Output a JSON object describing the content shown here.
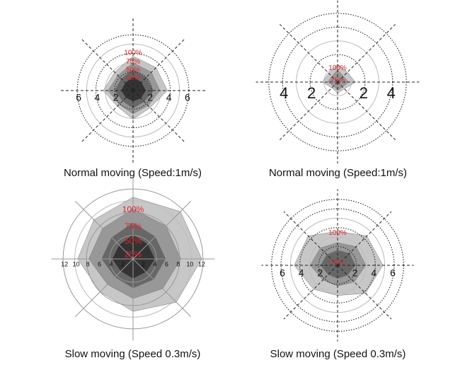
{
  "colors": {
    "background": "#ffffff",
    "grid_line": "#222222",
    "grid_light": "#bbbbbb",
    "percent_label": "#e0262a",
    "fill_outer": "#bdbdbd",
    "fill_mid": "#8f8f8f",
    "fill_inner": "#5e5e5e",
    "fill_core": "#2a2a2a"
  },
  "chart_data": [
    {
      "type": "radar",
      "caption": "Normal moving (Speed:1m/s)",
      "spokes": 8,
      "rlim": [
        0,
        7
      ],
      "tick_values": [
        2,
        4,
        6
      ],
      "x_tick_labels": [
        "6",
        "4",
        "2",
        "2",
        "4",
        "6"
      ],
      "rings": [
        2,
        4,
        6
      ],
      "light_rings": [
        1,
        3,
        5
      ],
      "ring_style": "dotted",
      "percent_labels": [
        {
          "text": "100%",
          "r": 4.1
        },
        {
          "text": "75%",
          "r": 3.15
        },
        {
          "text": "50%",
          "r": 2.3
        },
        {
          "text": "25%",
          "r": 1.4
        }
      ],
      "series": [
        {
          "level": "100%",
          "radii": [
            3.7,
            3.5,
            3.7,
            2.6,
            3.1,
            2.4,
            3.2,
            2.8
          ]
        },
        {
          "level": "75%",
          "radii": [
            3.0,
            2.8,
            2.9,
            2.3,
            2.5,
            2.1,
            2.7,
            2.3
          ]
        },
        {
          "level": "50%",
          "radii": [
            2.3,
            2.0,
            2.2,
            1.7,
            1.9,
            1.6,
            2.0,
            1.8
          ]
        },
        {
          "level": "25%",
          "radii": [
            1.5,
            1.3,
            1.4,
            1.2,
            1.2,
            1.1,
            1.3,
            1.2
          ]
        }
      ]
    },
    {
      "type": "radar",
      "caption": "Normal moving (Speed:1m/s)",
      "spokes": 8,
      "rlim": [
        0,
        5.3
      ],
      "tick_values": [
        2,
        4
      ],
      "x_tick_labels": [
        "4",
        "2",
        "2",
        "4"
      ],
      "rings": [
        2,
        4,
        5
      ],
      "light_rings": [
        1,
        3
      ],
      "ring_style": "dotted",
      "percent_labels": [
        {
          "text": "100%",
          "r": 1.05
        },
        {
          "text": "75%",
          "r": 0.15
        }
      ],
      "series": [
        {
          "level": "100%",
          "radii": [
            1.3,
            1.0,
            1.3,
            0.7,
            0.8,
            0.6,
            1.1,
            0.9
          ]
        },
        {
          "level": "75%",
          "radii": [
            0.9,
            0.6,
            0.8,
            0.5,
            0.6,
            0.4,
            0.7,
            0.6
          ]
        }
      ]
    },
    {
      "type": "radar",
      "caption": "Slow moving (Speed 0.3m/s)",
      "spokes": 8,
      "rlim": [
        0,
        12.5
      ],
      "tick_values": [
        2,
        4,
        6,
        8,
        10,
        12
      ],
      "x_tick_labels": [
        "12",
        "10",
        "8",
        "6",
        "4",
        "2",
        "2",
        "4",
        "6",
        "8",
        "10",
        "12"
      ],
      "rings": [
        4,
        8,
        12
      ],
      "light_rings": [
        2,
        6,
        10
      ],
      "ring_style": "solid",
      "percent_labels": [
        {
          "text": "100%",
          "r": 8.5
        },
        {
          "text": "75%",
          "r": 5.6
        },
        {
          "text": "50%",
          "r": 3.1
        },
        {
          "text": "25%",
          "r": 0.8
        }
      ],
      "series": [
        {
          "level": "100%",
          "radii": [
            10.6,
            11.5,
            11.8,
            10.5,
            9.0,
            8.0,
            9.5,
            9.5
          ]
        },
        {
          "level": "75%",
          "radii": [
            8.6,
            8.0,
            8.2,
            7.2,
            6.8,
            6.2,
            7.6,
            7.4
          ]
        },
        {
          "level": "50%",
          "radii": [
            6.2,
            5.4,
            5.6,
            5.0,
            5.0,
            4.4,
            5.4,
            5.2
          ]
        },
        {
          "level": "25%",
          "radii": [
            4.2,
            3.6,
            3.8,
            3.2,
            3.4,
            3.0,
            3.6,
            3.4
          ]
        }
      ]
    },
    {
      "type": "radar",
      "caption": "Slow moving (Speed 0.3m/s)",
      "spokes": 8,
      "rlim": [
        0,
        7.2
      ],
      "tick_values": [
        2,
        4,
        6
      ],
      "x_tick_labels": [
        "6",
        "4",
        "2",
        "2",
        "4",
        "6"
      ],
      "rings": [
        2,
        4,
        6,
        7
      ],
      "light_rings": [
        1,
        3,
        5
      ],
      "ring_style": "dotted",
      "percent_labels": [
        {
          "text": "100%",
          "r": 3.5
        },
        {
          "text": "75%",
          "r": 0.35
        }
      ],
      "series": [
        {
          "level": "100%",
          "radii": [
            3.6,
            4.4,
            4.8,
            4.2,
            3.2,
            3.6,
            4.6,
            4.4
          ]
        },
        {
          "level": "75%",
          "radii": [
            2.4,
            2.8,
            3.0,
            2.5,
            2.2,
            2.2,
            2.9,
            2.6
          ]
        },
        {
          "level": "50%",
          "radii": [
            1.6,
            1.8,
            1.9,
            1.5,
            1.4,
            1.4,
            1.8,
            1.6
          ]
        }
      ]
    }
  ]
}
